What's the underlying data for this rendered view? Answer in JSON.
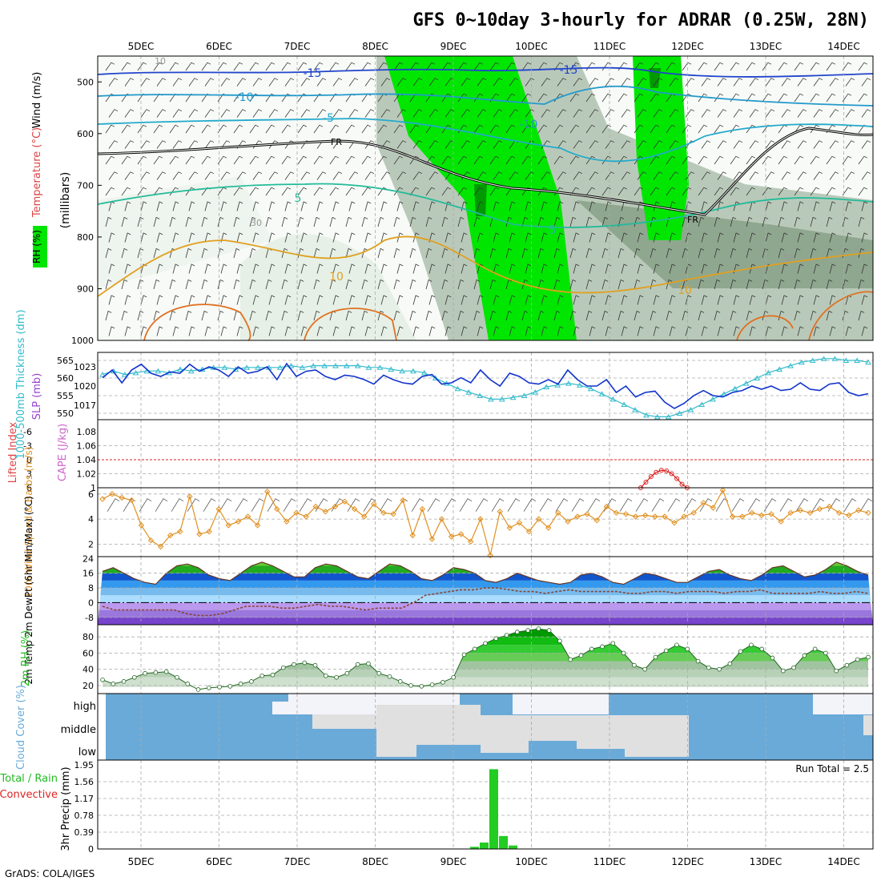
{
  "title": "GFS 0~10day 3-hourly for ADRAR (0.25W, 28N)",
  "footer": "GrADS: COLA/IGES",
  "colors": {
    "rh_light": "#e6f0e6",
    "rh_mid": "#b9c9b9",
    "rh_dark": "#8fa78f",
    "rh_green": "#00e600",
    "rh_dkgreen": "#009900",
    "slp": "#1133cc",
    "thickness": "#33bbcc",
    "cape": "#dd2222",
    "wind10": "#e09020",
    "temp": "#22bb22",
    "dewpt": "#884433",
    "rh2m": "#22bb22",
    "cloud": "#6aaad8",
    "cloud_high": "#f3f3fa",
    "cloud_mid": "#e0e0e0",
    "precip": "#22cc22",
    "grid": "#aaaaaa"
  },
  "chart_data": [
    {
      "id": "upper-air",
      "type": "heatmap",
      "ylabel_parts": [
        "RH (%)",
        "Temperature (°C)",
        "Wind (m/s)"
      ],
      "ylabel_units": "(millibars)",
      "y_ticks": [
        "500",
        "600",
        "700",
        "800",
        "900",
        "1000"
      ],
      "ylim": [
        450,
        1000
      ],
      "x_tick_labels": [
        "5DEC",
        "6DEC",
        "7DEC",
        "8DEC",
        "9DEC",
        "10DEC",
        "11DEC",
        "12DEC",
        "13DEC",
        "14DEC"
      ],
      "contour_labels": [
        {
          "text": "-15",
          "series": "500mb-temp"
        },
        {
          "text": "-15",
          "series": "500mb-temp"
        },
        {
          "text": "-10",
          "series": "550mb-temp"
        },
        {
          "text": "-10",
          "series": "550mb-temp"
        },
        {
          "text": "-5",
          "series": "590mb-temp"
        },
        {
          "text": "5",
          "series": "730mb-temp"
        },
        {
          "text": "5",
          "series": "730mb-temp"
        },
        {
          "text": "10",
          "series": "850mb-temp"
        },
        {
          "text": "10",
          "series": "850mb-temp"
        },
        {
          "text": "FR",
          "series": "freezing-level"
        },
        {
          "text": "FR",
          "series": "freezing-level"
        },
        {
          "text": "10",
          "series": "rh-contour"
        },
        {
          "text": "30",
          "series": "rh-contour"
        },
        {
          "text": "50",
          "series": "rh-contour"
        }
      ]
    },
    {
      "id": "slp-thickness",
      "type": "line",
      "ylabel_left": "1000-500mb Thickness (dm)",
      "ylabel_right": "SLP (mb)",
      "left_ticks": [
        "565",
        "560",
        "555",
        "550"
      ],
      "right_ticks": [
        "1023",
        "1020",
        "1017"
      ],
      "series": [
        {
          "name": "SLP (mb)",
          "axis": "right",
          "values": [
            1021.3,
            1022.5,
            1020.5,
            1022.5,
            1023.4,
            1022.0,
            1021.5,
            1022.2,
            1022.0,
            1023.4,
            1022.3,
            1023.0,
            1022.5,
            1021.5,
            1023.0,
            1022.0,
            1022.3,
            1023.0,
            1021.0,
            1023.5,
            1021.5,
            1022.3,
            1022.5,
            1021.5,
            1021.0,
            1021.7,
            1021.5,
            1021.0,
            1020.3,
            1021.7,
            1021.0,
            1020.5,
            1020.3,
            1021.5,
            1021.8,
            1020.3,
            1020.5,
            1021.3,
            1020.5,
            1022.5,
            1021.0,
            1020.0,
            1022.0,
            1021.5,
            1020.5,
            1020.3,
            1021.0,
            1020.3,
            1022.5,
            1021.0,
            1020.0,
            1020.0,
            1021.0,
            1019.0,
            1020.0,
            1018.3,
            1019.0,
            1019.2,
            1017.5,
            1016.5,
            1017.3,
            1018.5,
            1019.3,
            1018.5,
            1018.3,
            1019.0,
            1019.3,
            1020.0,
            1019.5,
            1020.0,
            1019.3,
            1019.5,
            1020.5,
            1019.5,
            1019.3,
            1020.3,
            1020.5,
            1019.0,
            1018.5,
            1018.8
          ]
        },
        {
          "name": "1000-500mb Thickness (dm)",
          "axis": "left",
          "values": [
            561,
            562,
            561,
            561.5,
            562,
            562,
            561.5,
            562.5,
            562,
            562.5,
            563,
            563,
            562.5,
            563,
            563,
            563,
            563,
            563.5,
            563,
            563.5,
            563.5,
            563.5,
            563.5,
            563.5,
            563,
            563,
            562.5,
            562,
            562,
            561.5,
            560,
            558.5,
            557,
            556,
            555,
            554,
            554,
            554.5,
            555,
            556,
            557.5,
            558,
            558.5,
            558,
            557,
            555.5,
            554,
            552.5,
            551,
            549.5,
            549,
            549,
            550,
            551,
            552.5,
            554,
            555.5,
            557,
            558.5,
            560,
            561.5,
            562.5,
            563.5,
            564.5,
            565,
            565.5,
            565.5,
            565,
            565,
            564.5
          ]
        }
      ]
    },
    {
      "id": "li-cape",
      "type": "line",
      "ylabel_left": "Lifted Index",
      "ylabel_right": "CAPE (J/kg)",
      "left_ticks": [
        "-6",
        "-3",
        "0",
        "3",
        "6"
      ],
      "right_ticks": [
        "1.08",
        "1.06",
        "1.04",
        "1.02",
        "1"
      ],
      "series": [
        {
          "name": "CAPE (J/kg)",
          "axis": "right",
          "values": [
            1.0,
            1.008,
            1.016,
            1.022,
            1.025,
            1.024,
            1.02,
            1.013,
            1.005,
            1.0
          ]
        }
      ]
    },
    {
      "id": "wind10m",
      "type": "line",
      "ylabel": "10m Wind Speed & Barbs (m/s)",
      "y_ticks": [
        "6",
        "4",
        "2"
      ],
      "ylim": [
        1,
        6.5
      ],
      "series": [
        {
          "name": "Speed",
          "values": [
            5.6,
            6.0,
            5.7,
            5.5,
            3.5,
            2.3,
            1.8,
            2.7,
            3.0,
            5.8,
            2.8,
            3.0,
            4.8,
            3.5,
            3.8,
            4.2,
            3.5,
            6.2,
            4.8,
            3.8,
            4.5,
            4.2,
            5.0,
            4.6,
            5.0,
            5.4,
            4.8,
            4.2,
            5.2,
            4.5,
            4.4,
            5.5,
            2.7,
            4.8,
            2.4,
            4.0,
            2.6,
            2.8,
            2.2,
            4.0,
            1.1,
            4.6,
            3.3,
            3.7,
            3.0,
            4.0,
            3.3,
            4.5,
            3.8,
            4.2,
            4.4,
            3.9,
            5.0,
            4.5,
            4.4,
            4.2,
            4.3,
            4.2,
            4.2,
            3.7,
            4.2,
            4.5,
            5.3,
            4.9,
            6.3,
            4.2,
            4.2,
            4.5,
            4.3,
            4.4,
            3.8,
            4.5,
            4.7,
            4.5,
            4.8,
            5.0,
            4.5,
            4.3,
            4.7,
            4.5
          ]
        }
      ]
    },
    {
      "id": "temp2m",
      "type": "area",
      "ylabel": "2m Temp 2m DewPt (6hr Min/Max) (°C)",
      "y_ticks": [
        "24",
        "16",
        "8",
        "0",
        "-8"
      ],
      "ylim": [
        -12,
        25
      ],
      "series": [
        {
          "name": "2m Temp",
          "values": [
            17,
            19,
            16,
            13,
            11,
            10,
            16,
            20,
            21,
            19,
            15,
            13,
            12,
            16,
            20,
            22,
            20,
            17,
            14,
            14,
            19,
            21,
            20,
            17,
            14,
            13,
            17,
            21,
            20,
            17,
            13,
            12,
            15,
            19,
            18,
            16,
            12,
            11,
            13,
            16,
            14,
            12,
            11,
            10,
            11,
            15,
            16,
            14,
            11,
            10,
            13,
            16,
            15,
            13,
            11,
            11,
            14,
            17,
            18,
            15,
            13,
            12,
            15,
            19,
            20,
            17,
            14,
            15,
            18,
            22,
            20,
            17,
            15
          ]
        },
        {
          "name": "2m DewPt",
          "values": [
            -2,
            -4,
            -4,
            -4,
            -4,
            -4,
            -4,
            -6,
            -7,
            -7,
            -6,
            -4,
            -2,
            -2,
            -2,
            -3,
            -3,
            -2,
            -1,
            -2,
            -2,
            -3,
            -4,
            -3,
            -3,
            -3,
            0,
            4,
            5,
            6,
            7,
            7,
            8,
            8,
            7,
            6,
            6,
            5,
            6,
            7,
            6,
            6,
            6,
            6,
            5,
            5,
            6,
            6,
            5,
            6,
            6,
            6,
            5,
            6,
            6,
            7,
            5,
            5,
            5,
            5,
            6,
            5,
            5,
            6,
            5
          ]
        }
      ]
    },
    {
      "id": "rh2m",
      "type": "area",
      "ylabel": "2m RH (%)",
      "y_ticks": [
        "80",
        "60",
        "40",
        "20"
      ],
      "ylim": [
        10,
        95
      ],
      "series": [
        {
          "name": "2m RH",
          "values": [
            27,
            22,
            25,
            30,
            35,
            36,
            37,
            30,
            22,
            15,
            17,
            18,
            19,
            22,
            25,
            32,
            33,
            42,
            46,
            48,
            45,
            32,
            30,
            35,
            46,
            47,
            35,
            31,
            25,
            20,
            19,
            21,
            24,
            30,
            58,
            65,
            72,
            78,
            82,
            86,
            88,
            90,
            88,
            75,
            52,
            57,
            65,
            68,
            72,
            60,
            45,
            40,
            55,
            63,
            70,
            65,
            50,
            42,
            40,
            47,
            62,
            70,
            65,
            54,
            38,
            42,
            57,
            65,
            60,
            38,
            45,
            52,
            55
          ]
        }
      ]
    },
    {
      "id": "cloud",
      "type": "heatmap",
      "ylabel": "Cloud Cover (%)",
      "row_labels": [
        "high",
        "middle",
        "low"
      ]
    },
    {
      "id": "precip",
      "type": "bar",
      "ylabel_left": "Total / Rain",
      "ylabel_left2": "Convective",
      "ylabel": "3hr Precip (mm)",
      "y_ticks": [
        "1.95",
        "1.56",
        "1.17",
        "0.78",
        "0.39",
        "0"
      ],
      "ylim": [
        0,
        1.95
      ],
      "run_total": "Run Total = 2.5",
      "categories": [
        "9DEC 06Z",
        "9DEC 09Z",
        "9DEC 12Z",
        "9DEC 15Z",
        "9DEC 18Z"
      ],
      "values": [
        0.05,
        0.15,
        1.85,
        0.3,
        0.08
      ]
    }
  ]
}
